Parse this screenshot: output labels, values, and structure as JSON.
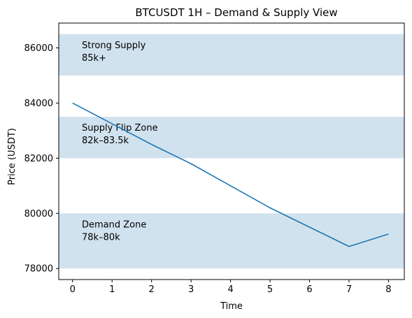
{
  "chart_data": {
    "type": "line",
    "title": "BTCUSDT 1H – Demand & Supply View",
    "xlabel": "Time",
    "ylabel": "Price (USDT)",
    "xlim": [
      -0.35,
      8.4
    ],
    "ylim": [
      77600,
      86900
    ],
    "xticks": [
      0,
      1,
      2,
      3,
      4,
      5,
      6,
      7,
      8
    ],
    "yticks": [
      78000,
      80000,
      82000,
      84000,
      86000
    ],
    "series": [
      {
        "x": [
          0,
          1,
          2,
          3,
          4,
          5,
          6,
          7,
          8
        ],
        "values": [
          84000,
          83250,
          82500,
          81800,
          81000,
          80200,
          79500,
          78800,
          79250
        ]
      }
    ],
    "zones": [
      {
        "label": "Strong Supply",
        "sublabel": "85k+",
        "y0": 85000,
        "y1": 86500
      },
      {
        "label": "Supply Flip Zone",
        "sublabel": "82k–83.5k",
        "y0": 82000,
        "y1": 83500
      },
      {
        "label": "Demand Zone",
        "sublabel": "78k–80k",
        "y0": 78000,
        "y1": 80000
      }
    ],
    "grid": false,
    "colors": {
      "line": "#1f77b4",
      "zone": "#d1e2ef",
      "axis": "#000000"
    }
  }
}
